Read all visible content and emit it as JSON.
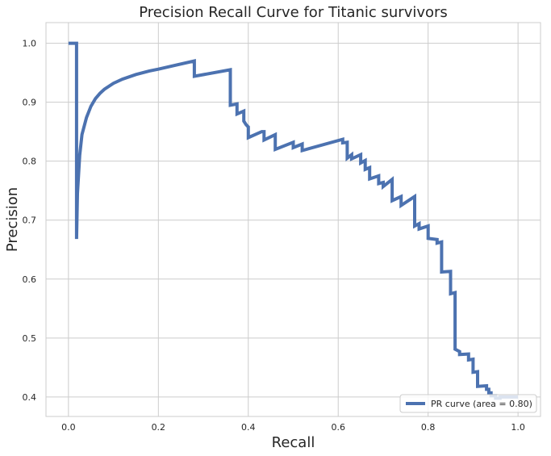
{
  "chart_data": {
    "type": "line",
    "title": "Precision Recall Curve for Titanic survivors",
    "xlabel": "Recall",
    "ylabel": "Precision",
    "xlim": [
      -0.05,
      1.05
    ],
    "ylim": [
      0.367,
      1.035
    ],
    "xticks": [
      "0.0",
      "0.2",
      "0.4",
      "0.6",
      "0.8",
      "1.0"
    ],
    "yticks": [
      "0.4",
      "0.5",
      "0.6",
      "0.7",
      "0.8",
      "0.9",
      "1.0"
    ],
    "grid": true,
    "legend_position": "lower-right",
    "series": [
      {
        "name": "PR curve (area = 0.80)",
        "color": "#4c72b0",
        "x": [
          0.0,
          0.018,
          0.018,
          0.02,
          0.025,
          0.03,
          0.04,
          0.05,
          0.06,
          0.07,
          0.08,
          0.1,
          0.12,
          0.15,
          0.18,
          0.2,
          0.24,
          0.28,
          0.28,
          0.36,
          0.36,
          0.375,
          0.375,
          0.39,
          0.39,
          0.395,
          0.4,
          0.4,
          0.43,
          0.435,
          0.435,
          0.46,
          0.46,
          0.5,
          0.5,
          0.52,
          0.52,
          0.61,
          0.61,
          0.62,
          0.62,
          0.63,
          0.63,
          0.65,
          0.65,
          0.66,
          0.66,
          0.67,
          0.67,
          0.69,
          0.69,
          0.7,
          0.7,
          0.72,
          0.72,
          0.74,
          0.74,
          0.77,
          0.77,
          0.78,
          0.78,
          0.8,
          0.8,
          0.82,
          0.82,
          0.83,
          0.83,
          0.85,
          0.85,
          0.86,
          0.86,
          0.87,
          0.87,
          0.89,
          0.89,
          0.9,
          0.9,
          0.91,
          0.91,
          0.93,
          0.93,
          0.935,
          0.935,
          0.94,
          0.94,
          0.95,
          0.95,
          0.96,
          0.96,
          0.97,
          0.97,
          0.98,
          0.98,
          1.0
        ],
        "y": [
          1.0,
          1.0,
          0.668,
          0.745,
          0.81,
          0.845,
          0.874,
          0.893,
          0.906,
          0.915,
          0.922,
          0.932,
          0.939,
          0.947,
          0.953,
          0.956,
          0.963,
          0.97,
          0.944,
          0.955,
          0.895,
          0.897,
          0.88,
          0.885,
          0.868,
          0.862,
          0.858,
          0.84,
          0.85,
          0.85,
          0.836,
          0.845,
          0.82,
          0.832,
          0.823,
          0.829,
          0.818,
          0.837,
          0.831,
          0.832,
          0.805,
          0.811,
          0.804,
          0.811,
          0.797,
          0.801,
          0.786,
          0.789,
          0.77,
          0.775,
          0.762,
          0.764,
          0.757,
          0.769,
          0.733,
          0.74,
          0.725,
          0.74,
          0.69,
          0.694,
          0.685,
          0.69,
          0.669,
          0.667,
          0.661,
          0.663,
          0.612,
          0.613,
          0.575,
          0.577,
          0.481,
          0.477,
          0.472,
          0.473,
          0.463,
          0.464,
          0.442,
          0.443,
          0.418,
          0.419,
          0.413,
          0.413,
          0.407,
          0.407,
          0.402,
          0.402,
          0.398,
          0.398,
          0.4,
          0.4,
          0.4,
          0.4,
          0.4,
          0.4
        ]
      }
    ]
  }
}
